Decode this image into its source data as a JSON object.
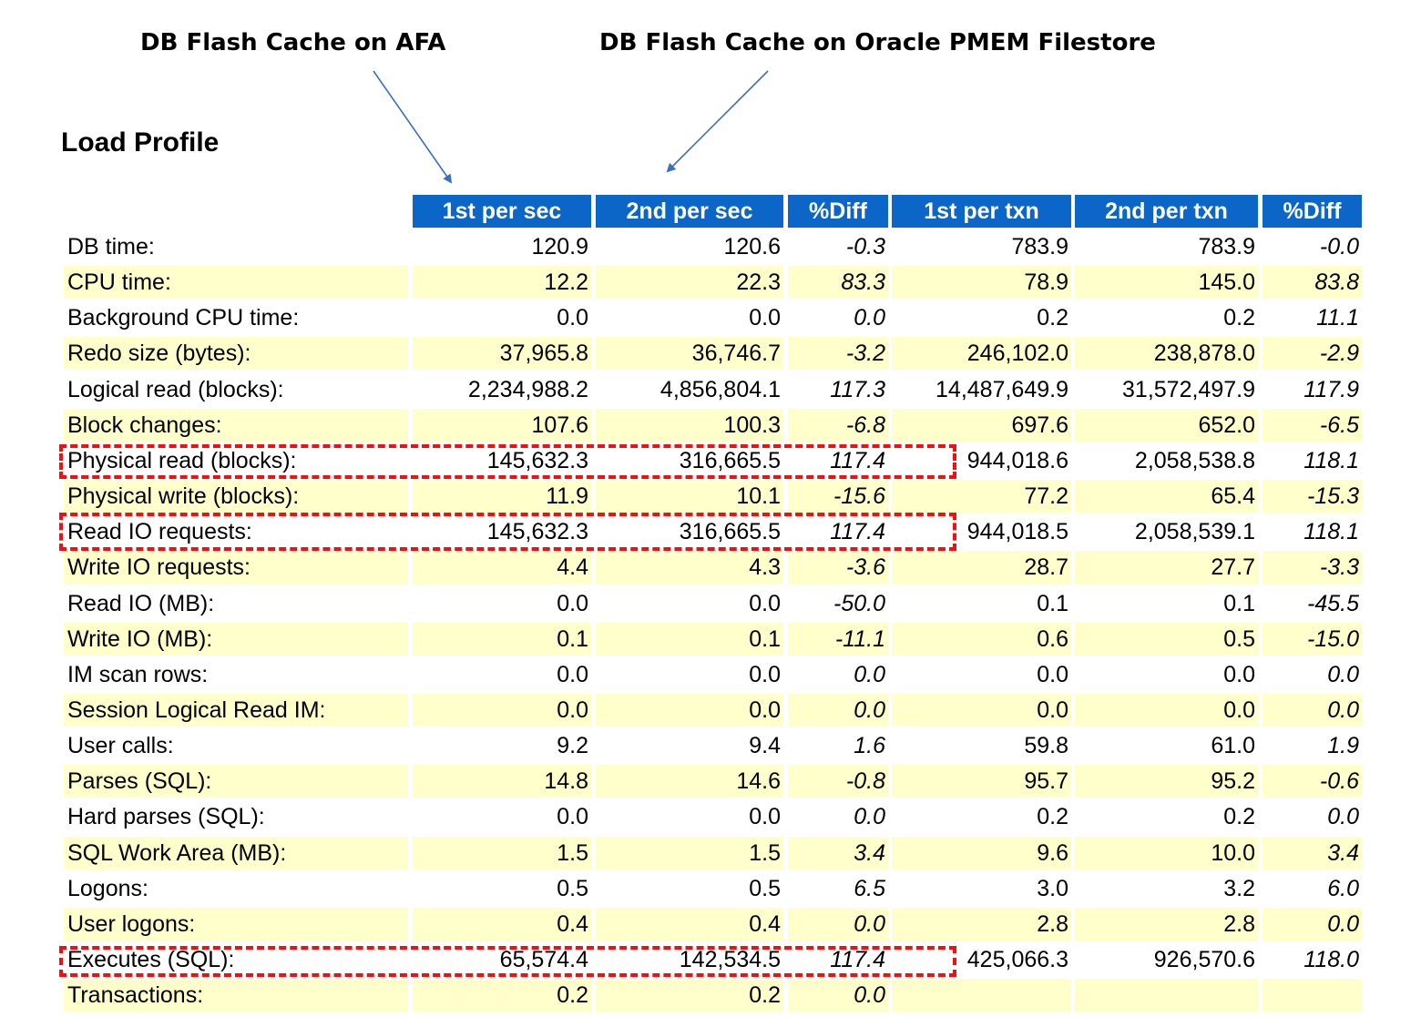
{
  "annotations": {
    "left_label": "DB Flash Cache on AFA",
    "right_label": "DB Flash Cache on Oracle PMEM Filestore"
  },
  "title": "Load Profile",
  "columns": [
    "1st per sec",
    "2nd per sec",
    "%Diff",
    "1st per txn",
    "2nd per txn",
    "%Diff"
  ],
  "rows": [
    {
      "label": "DB time:",
      "v": [
        "120.9",
        "120.6",
        "-0.3",
        "783.9",
        "783.9",
        "-0.0"
      ]
    },
    {
      "label": "CPU time:",
      "v": [
        "12.2",
        "22.3",
        "83.3",
        "78.9",
        "145.0",
        "83.8"
      ]
    },
    {
      "label": "Background CPU time:",
      "v": [
        "0.0",
        "0.0",
        "0.0",
        "0.2",
        "0.2",
        "11.1"
      ]
    },
    {
      "label": "Redo size (bytes):",
      "v": [
        "37,965.8",
        "36,746.7",
        "-3.2",
        "246,102.0",
        "238,878.0",
        "-2.9"
      ]
    },
    {
      "label": "Logical read (blocks):",
      "v": [
        "2,234,988.2",
        "4,856,804.1",
        "117.3",
        "14,487,649.9",
        "31,572,497.9",
        "117.9"
      ]
    },
    {
      "label": "Block changes:",
      "v": [
        "107.6",
        "100.3",
        "-6.8",
        "697.6",
        "652.0",
        "-6.5"
      ]
    },
    {
      "label": "Physical read (blocks):",
      "v": [
        "145,632.3",
        "316,665.5",
        "117.4",
        "944,018.6",
        "2,058,538.8",
        "118.1"
      ]
    },
    {
      "label": "Physical write (blocks):",
      "v": [
        "11.9",
        "10.1",
        "-15.6",
        "77.2",
        "65.4",
        "-15.3"
      ]
    },
    {
      "label": "Read IO requests:",
      "v": [
        "145,632.3",
        "316,665.5",
        "117.4",
        "944,018.5",
        "2,058,539.1",
        "118.1"
      ]
    },
    {
      "label": "Write IO requests:",
      "v": [
        "4.4",
        "4.3",
        "-3.6",
        "28.7",
        "27.7",
        "-3.3"
      ]
    },
    {
      "label": "Read IO (MB):",
      "v": [
        "0.0",
        "0.0",
        "-50.0",
        "0.1",
        "0.1",
        "-45.5"
      ]
    },
    {
      "label": "Write IO (MB):",
      "v": [
        "0.1",
        "0.1",
        "-11.1",
        "0.6",
        "0.5",
        "-15.0"
      ]
    },
    {
      "label": "IM scan rows:",
      "v": [
        "0.0",
        "0.0",
        "0.0",
        "0.0",
        "0.0",
        "0.0"
      ]
    },
    {
      "label": "Session Logical Read IM:",
      "v": [
        "0.0",
        "0.0",
        "0.0",
        "0.0",
        "0.0",
        "0.0"
      ]
    },
    {
      "label": "User calls:",
      "v": [
        "9.2",
        "9.4",
        "1.6",
        "59.8",
        "61.0",
        "1.9"
      ]
    },
    {
      "label": "Parses (SQL):",
      "v": [
        "14.8",
        "14.6",
        "-0.8",
        "95.7",
        "95.2",
        "-0.6"
      ]
    },
    {
      "label": "Hard parses (SQL):",
      "v": [
        "0.0",
        "0.0",
        "0.0",
        "0.2",
        "0.2",
        "0.0"
      ]
    },
    {
      "label": "SQL Work Area (MB):",
      "v": [
        "1.5",
        "1.5",
        "3.4",
        "9.6",
        "10.0",
        "3.4"
      ]
    },
    {
      "label": "Logons:",
      "v": [
        "0.5",
        "0.5",
        "6.5",
        "3.0",
        "3.2",
        "6.0"
      ]
    },
    {
      "label": "User logons:",
      "v": [
        "0.4",
        "0.4",
        "0.0",
        "2.8",
        "2.8",
        "0.0"
      ]
    },
    {
      "label": "Executes (SQL):",
      "v": [
        "65,574.4",
        "142,534.5",
        "117.4",
        "425,066.3",
        "926,570.6",
        "118.0"
      ]
    },
    {
      "label": "Transactions:",
      "v": [
        "0.2",
        "0.2",
        "0.0",
        "",
        "",
        ""
      ]
    }
  ],
  "highlight_color": "#ee1111",
  "header_color": "#0b66c8",
  "stripe_color": "#ffffcc"
}
